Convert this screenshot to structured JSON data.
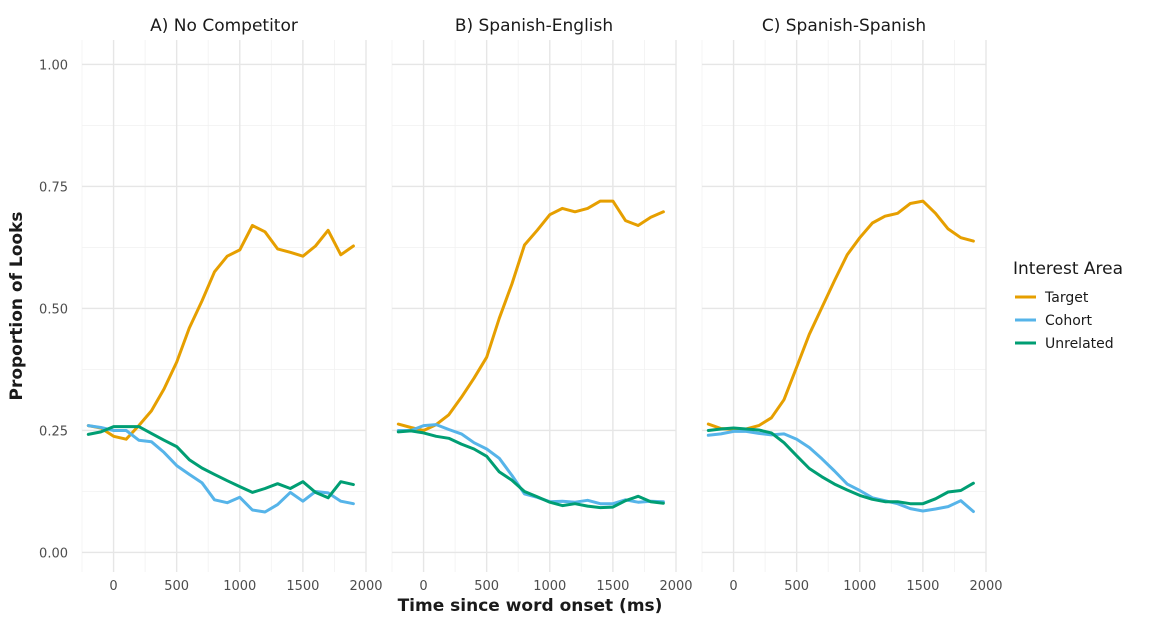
{
  "chart_data": {
    "type": "line",
    "xlabel": "Time since word onset (ms)",
    "ylabel": "Proportion of Looks",
    "xlim": [
      -250,
      2000
    ],
    "ylim": [
      -0.04,
      1.05
    ],
    "x_ticks": [
      0,
      500,
      1000,
      1500,
      2000
    ],
    "y_ticks": [
      0,
      0.25,
      0.5,
      0.75,
      1.0
    ],
    "y_tick_labels": [
      "0.00",
      "0.25",
      "0.50",
      "0.75",
      "1.00"
    ],
    "grid": true,
    "legend": {
      "title": "Interest Area",
      "position": "right",
      "items": [
        {
          "name": "Target",
          "color": "#E69F00"
        },
        {
          "name": "Cohort",
          "color": "#56B4E9"
        },
        {
          "name": "Unrelated",
          "color": "#009E73"
        }
      ]
    },
    "x": [
      -200,
      -100,
      0,
      100,
      200,
      300,
      400,
      500,
      600,
      700,
      800,
      900,
      1000,
      1100,
      1200,
      1300,
      1400,
      1500,
      1600,
      1700,
      1800,
      1900
    ],
    "panels": [
      {
        "title": "A) No Competitor",
        "series": [
          {
            "name": "Target",
            "color": "#E69F00",
            "values": [
              0.26,
              0.255,
              0.238,
              0.232,
              0.26,
              0.29,
              0.335,
              0.39,
              0.46,
              0.515,
              0.575,
              0.607,
              0.62,
              0.67,
              0.657,
              0.622,
              0.615,
              0.607,
              0.628,
              0.66,
              0.61,
              0.628
            ]
          },
          {
            "name": "Cohort",
            "color": "#56B4E9",
            "values": [
              0.26,
              0.256,
              0.25,
              0.25,
              0.23,
              0.227,
              0.205,
              0.178,
              0.16,
              0.143,
              0.108,
              0.102,
              0.113,
              0.087,
              0.083,
              0.098,
              0.123,
              0.105,
              0.125,
              0.122,
              0.105,
              0.1
            ]
          },
          {
            "name": "Unrelated",
            "color": "#009E73",
            "values": [
              0.242,
              0.247,
              0.258,
              0.258,
              0.258,
              0.244,
              0.23,
              0.217,
              0.19,
              0.173,
              0.16,
              0.147,
              0.135,
              0.123,
              0.131,
              0.141,
              0.131,
              0.145,
              0.123,
              0.112,
              0.145,
              0.139
            ]
          }
        ]
      },
      {
        "title": "B) Spanish-English",
        "series": [
          {
            "name": "Target",
            "color": "#E69F00",
            "values": [
              0.263,
              0.256,
              0.25,
              0.262,
              0.282,
              0.318,
              0.357,
              0.4,
              0.48,
              0.55,
              0.63,
              0.66,
              0.692,
              0.705,
              0.698,
              0.705,
              0.72,
              0.72,
              0.68,
              0.67,
              0.687,
              0.698
            ]
          },
          {
            "name": "Cohort",
            "color": "#56B4E9",
            "values": [
              0.25,
              0.25,
              0.26,
              0.262,
              0.252,
              0.243,
              0.225,
              0.212,
              0.193,
              0.158,
              0.12,
              0.113,
              0.104,
              0.105,
              0.103,
              0.107,
              0.1,
              0.1,
              0.108,
              0.103,
              0.105,
              0.104
            ]
          },
          {
            "name": "Unrelated",
            "color": "#009E73",
            "values": [
              0.247,
              0.249,
              0.245,
              0.238,
              0.234,
              0.222,
              0.212,
              0.197,
              0.165,
              0.148,
              0.125,
              0.114,
              0.103,
              0.096,
              0.1,
              0.095,
              0.092,
              0.093,
              0.106,
              0.115,
              0.104,
              0.101
            ]
          }
        ]
      },
      {
        "title": "C) Spanish-Spanish",
        "series": [
          {
            "name": "Target",
            "color": "#E69F00",
            "values": [
              0.263,
              0.254,
              0.252,
              0.253,
              0.26,
              0.276,
              0.313,
              0.38,
              0.447,
              0.502,
              0.557,
              0.61,
              0.645,
              0.675,
              0.689,
              0.695,
              0.715,
              0.72,
              0.695,
              0.663,
              0.645,
              0.638
            ]
          },
          {
            "name": "Cohort",
            "color": "#56B4E9",
            "values": [
              0.24,
              0.243,
              0.248,
              0.248,
              0.244,
              0.241,
              0.243,
              0.232,
              0.215,
              0.192,
              0.167,
              0.14,
              0.127,
              0.112,
              0.106,
              0.1,
              0.09,
              0.085,
              0.089,
              0.094,
              0.106,
              0.084
            ]
          },
          {
            "name": "Unrelated",
            "color": "#009E73",
            "values": [
              0.25,
              0.253,
              0.255,
              0.253,
              0.251,
              0.245,
              0.225,
              0.198,
              0.172,
              0.155,
              0.14,
              0.128,
              0.117,
              0.109,
              0.104,
              0.104,
              0.1,
              0.1,
              0.11,
              0.124,
              0.127,
              0.142
            ]
          }
        ]
      }
    ]
  }
}
